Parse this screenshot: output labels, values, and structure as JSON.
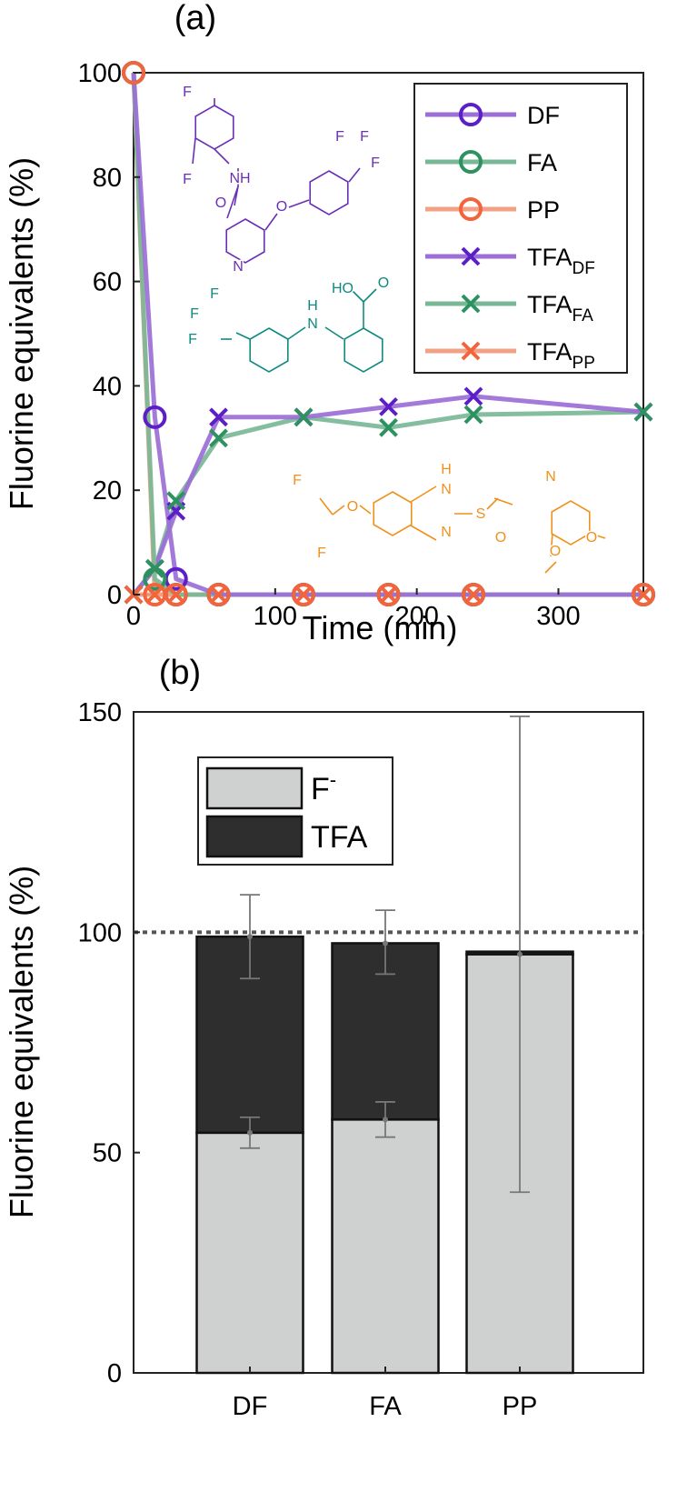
{
  "chart_data": [
    {
      "panel": "(a)",
      "type": "line",
      "xlabel": "Time (min)",
      "ylabel": "Fluorine equivalents (%)",
      "xlim": [
        0,
        360
      ],
      "ylim": [
        0,
        100
      ],
      "xticks": [
        0,
        100,
        200,
        300
      ],
      "yticks": [
        0,
        20,
        40,
        60,
        80,
        100
      ],
      "legend_position": "top-right",
      "colors": {
        "DF": "#9b6fd6",
        "FA": "#79b896",
        "PP": "#f2a184"
      },
      "marker_colors": {
        "DF": "#5c1fc7",
        "FA": "#2e9160",
        "PP": "#f2643c"
      },
      "series": [
        {
          "name": "DF",
          "marker": "o",
          "x": [
            0,
            15,
            30,
            60,
            120,
            180,
            240,
            360
          ],
          "y": [
            100,
            34,
            3,
            0,
            0,
            0,
            0,
            0
          ]
        },
        {
          "name": "FA",
          "marker": "o",
          "x": [
            0,
            15,
            30,
            60,
            120,
            180,
            240,
            360
          ],
          "y": [
            100,
            3,
            0,
            0,
            0,
            0,
            0,
            0
          ]
        },
        {
          "name": "PP",
          "marker": "o",
          "x": [
            0,
            15,
            30,
            60,
            120,
            180,
            240,
            360
          ],
          "y": [
            100,
            0,
            0,
            0,
            0,
            0,
            0,
            0
          ]
        },
        {
          "name": "TFA_DF",
          "marker": "x",
          "x": [
            0,
            15,
            30,
            60,
            120,
            180,
            240,
            360
          ],
          "y": [
            0,
            5,
            16,
            34,
            34,
            36,
            38,
            35
          ]
        },
        {
          "name": "TFA_FA",
          "marker": "x",
          "x": [
            0,
            15,
            30,
            60,
            120,
            180,
            240,
            360
          ],
          "y": [
            0,
            5,
            18,
            30,
            34,
            32,
            34.5,
            35
          ]
        },
        {
          "name": "TFA_PP",
          "marker": "x",
          "x": [
            0,
            15,
            30,
            60,
            120,
            180,
            240,
            360
          ],
          "y": [
            0,
            0,
            0,
            0,
            0,
            0,
            0,
            0
          ]
        }
      ],
      "legend": [
        {
          "base": "DF",
          "sub": ""
        },
        {
          "base": "FA",
          "sub": ""
        },
        {
          "base": "PP",
          "sub": ""
        },
        {
          "base": "TFA",
          "sub": "DF"
        },
        {
          "base": "TFA",
          "sub": "FA"
        },
        {
          "base": "TFA",
          "sub": "PP"
        }
      ],
      "molecule_labels": {
        "diflufenican": [
          "F",
          "F",
          "NH",
          "O",
          "O",
          "N",
          "F",
          "F",
          "F"
        ],
        "flufenamic_acid": [
          "F",
          "F",
          "F",
          "H",
          "N",
          "HO",
          "O"
        ],
        "pantoprazole": [
          "F",
          "O",
          "F",
          "H",
          "N",
          "N",
          "S",
          "O",
          "N",
          "O",
          "O"
        ]
      },
      "molecule_colors": {
        "diflufenican": "#6a2fb5",
        "flufenamic_acid": "#0e8a80",
        "pantoprazole": "#f0911c"
      }
    },
    {
      "panel": "(b)",
      "type": "bar",
      "stacked": true,
      "ylabel": "Fluorine equivalents (%)",
      "ylim": [
        0,
        150
      ],
      "yticks": [
        0,
        50,
        100,
        150
      ],
      "reference_line": 100,
      "categories": [
        "DF",
        "FA",
        "PP"
      ],
      "legend_position": "top-left",
      "series": [
        {
          "name": "F⁻",
          "color": "#cfd1d0",
          "values": [
            54.5,
            57.5,
            95
          ],
          "error_lower": [
            51,
            53.5,
            41
          ],
          "error_upper": [
            58,
            61.5,
            149
          ]
        },
        {
          "name": "TFA",
          "color": "#2e2e2e",
          "values": [
            44.5,
            40,
            0.6
          ],
          "total_errors_lower": [
            89.5,
            90.5,
            null
          ],
          "total_errors_upper": [
            108.5,
            105,
            null
          ]
        }
      ],
      "legend": [
        {
          "base": "F",
          "sup": "-"
        },
        {
          "base": "TFA",
          "sup": ""
        }
      ]
    }
  ]
}
